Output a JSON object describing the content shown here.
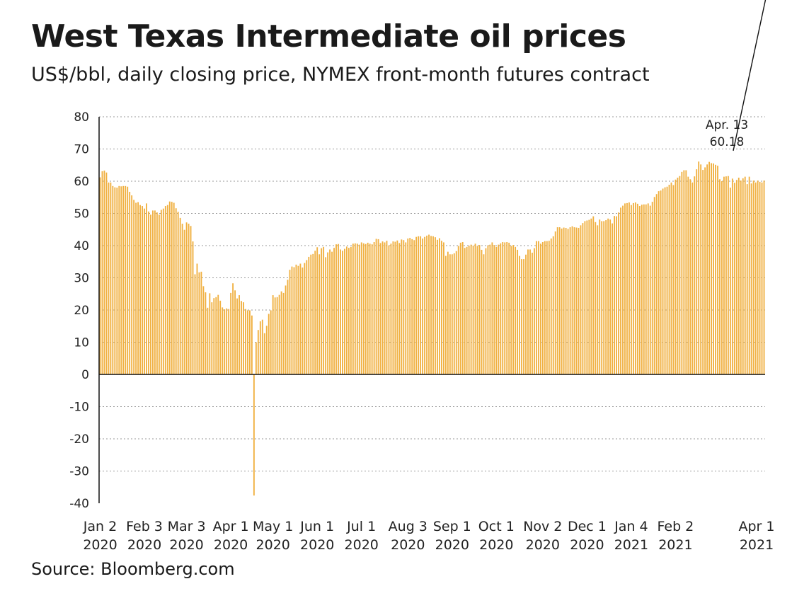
{
  "header": {
    "title": "West Texas Intermediate oil prices",
    "subtitle": "US$/bbl, daily closing price, NYMEX front-month futures contract"
  },
  "footer": {
    "source": "Source: Bloomberg.com"
  },
  "chart_data": {
    "type": "bar",
    "title": "West Texas Intermediate oil prices",
    "subtitle": "US$/bbl, daily closing price, NYMEX front-month futures contract",
    "ylim": [
      -40,
      80
    ],
    "yticks": [
      80,
      70,
      60,
      50,
      40,
      30,
      20,
      10,
      0,
      -10,
      -20,
      -30,
      -40
    ],
    "grid": "horizontal dotted",
    "bar_color": "#f0b040",
    "xtick_labels": [
      [
        "Jan 2",
        "2020"
      ],
      [
        "Feb 3",
        "2020"
      ],
      [
        "Mar 3",
        "2020"
      ],
      [
        "Apr 1",
        "2020"
      ],
      [
        "May 1",
        "2020"
      ],
      [
        "Jun 1",
        "2020"
      ],
      [
        "Jul 1",
        "2020"
      ],
      [
        "Aug 3",
        "2020"
      ],
      [
        "Sep 1",
        "2020"
      ],
      [
        "Oct 1",
        "2020"
      ],
      [
        "Nov 2",
        "2020"
      ],
      [
        "Dec 1",
        "2020"
      ],
      [
        "Jan 4",
        "2021"
      ],
      [
        "Feb 2",
        "2021"
      ],
      [
        "Apr 1",
        "2021"
      ]
    ],
    "xtick_index": [
      0,
      21,
      41,
      62,
      82,
      103,
      124,
      146,
      167,
      188,
      210,
      231,
      252,
      273,
      313
    ],
    "annotation": {
      "lines": [
        "Apr. 13",
        "60.18"
      ],
      "bar_index": 317
    },
    "values": [
      61.2,
      63.1,
      63.3,
      62.7,
      59.6,
      59.6,
      58.5,
      58.1,
      58.0,
      58.5,
      58.4,
      58.5,
      58.5,
      58.3,
      56.7,
      55.6,
      54.2,
      53.3,
      53.5,
      52.6,
      52.3,
      51.5,
      53.1,
      50.6,
      49.6,
      50.9,
      50.9,
      50.3,
      49.6,
      51.1,
      51.5,
      52.3,
      52.6,
      53.7,
      53.6,
      53.3,
      51.6,
      50.5,
      48.6,
      46.8,
      44.9,
      47.2,
      46.8,
      46.1,
      41.3,
      31.1,
      34.4,
      31.7,
      31.9,
      27.4,
      25.5,
      20.7,
      25.2,
      22.4,
      23.7,
      24.0,
      24.7,
      22.9,
      20.8,
      20.2,
      20.5,
      20.3,
      25.3,
      28.3,
      26.1,
      23.6,
      24.6,
      22.8,
      22.4,
      20.3,
      19.9,
      19.9,
      18.3,
      -37.6,
      10.0,
      13.8,
      16.5,
      17.0,
      12.8,
      15.1,
      18.8,
      19.9,
      24.6,
      23.9,
      24.0,
      24.7,
      25.8,
      25.3,
      27.6,
      29.4,
      32.5,
      33.5,
      33.3,
      34.1,
      33.7,
      34.4,
      33.2,
      34.6,
      35.5,
      36.5,
      37.2,
      37.4,
      38.4,
      39.5,
      37.3,
      39.2,
      39.6,
      36.4,
      37.9,
      38.8,
      38.1,
      39.3,
      40.4,
      40.5,
      38.8,
      38.4,
      39.0,
      39.7,
      39.3,
      39.6,
      40.6,
      40.7,
      40.6,
      40.3,
      41.0,
      40.7,
      40.5,
      40.9,
      40.6,
      40.4,
      41.1,
      42.1,
      42.0,
      40.8,
      41.3,
      41.0,
      41.5,
      40.1,
      40.6,
      41.3,
      41.2,
      41.6,
      40.8,
      41.9,
      41.7,
      41.0,
      42.2,
      42.4,
      42.0,
      41.7,
      42.7,
      42.9,
      42.9,
      42.2,
      42.7,
      43.1,
      43.4,
      43.0,
      42.9,
      42.6,
      41.8,
      42.3,
      41.5,
      41.0,
      36.8,
      38.1,
      37.3,
      37.3,
      37.6,
      38.3,
      39.9,
      40.9,
      41.1,
      39.3,
      39.6,
      40.0,
      40.3,
      40.0,
      40.6,
      39.9,
      40.2,
      38.7,
      37.3,
      39.2,
      40.1,
      40.3,
      41.0,
      40.2,
      39.6,
      40.3,
      40.7,
      41.1,
      41.0,
      41.1,
      40.9,
      39.9,
      40.2,
      39.6,
      38.7,
      36.8,
      35.8,
      35.8,
      37.2,
      38.8,
      38.8,
      37.8,
      39.2,
      41.4,
      41.4,
      40.6,
      41.1,
      41.4,
      41.4,
      41.5,
      42.2,
      42.9,
      44.4,
      45.7,
      45.7,
      45.3,
      45.6,
      45.5,
      45.2,
      45.7,
      46.0,
      45.7,
      45.6,
      45.5,
      46.3,
      47.0,
      47.6,
      47.8,
      48.0,
      48.4,
      49.1,
      47.3,
      46.3,
      48.1,
      47.6,
      47.6,
      47.9,
      48.4,
      48.1,
      46.9,
      49.2,
      49.1,
      50.3,
      51.8,
      52.4,
      53.1,
      53.2,
      53.4,
      52.6,
      53.2,
      53.4,
      53.0,
      52.3,
      52.7,
      52.8,
      52.8,
      53.1,
      52.4,
      53.6,
      55.1,
      56.0,
      56.9,
      57.1,
      57.7,
      58.1,
      58.3,
      58.9,
      59.6,
      58.8,
      60.5,
      61.1,
      61.6,
      62.9,
      63.4,
      63.4,
      61.4,
      60.6,
      59.6,
      61.5,
      63.7,
      66.1,
      65.2,
      63.5,
      64.3,
      65.2,
      66.0,
      65.6,
      65.5,
      65.1,
      64.8,
      60.6,
      60.0,
      61.4,
      61.5,
      61.6,
      58.0,
      60.8,
      59.5,
      60.4,
      61.1,
      60.2,
      60.9,
      61.4,
      59.1,
      61.4,
      59.3,
      60.2,
      59.6,
      60.2,
      59.8,
      59.6,
      60.2
    ]
  }
}
